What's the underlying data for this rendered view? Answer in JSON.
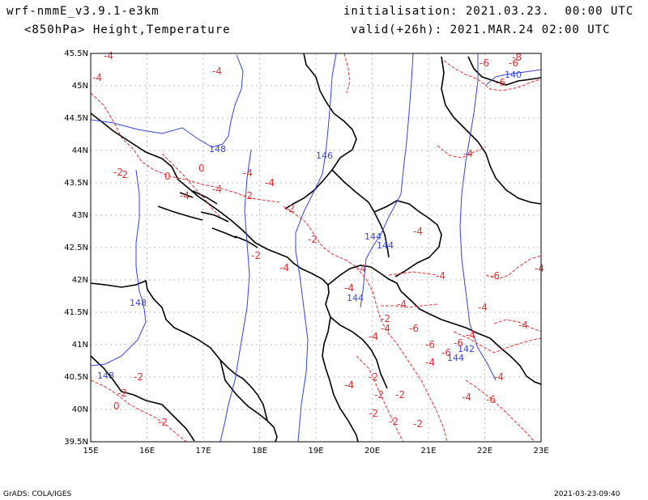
{
  "header": {
    "model": "wrf-nmmE_v3.9.1-e3km",
    "fields": "<850hPa> Height,Temperature",
    "init": "initialisation: 2021.03.23.  00:00 UTC",
    "valid": "valid(+26h): 2021.MAR.24 02:00 UTC"
  },
  "map": {
    "lat_labels": [
      "45.5N",
      "45N",
      "44.5N",
      "44N",
      "43.5N",
      "43N",
      "42.5N",
      "42N",
      "41.5N",
      "41N",
      "40.5N",
      "40N",
      "39.5N"
    ],
    "lon_labels": [
      "15E",
      "16E",
      "17E",
      "18E",
      "19E",
      "20E",
      "21E",
      "22E",
      "23E"
    ],
    "height_color": "#3344dd",
    "temperature_color": "#e83030",
    "height_labels": [
      "140",
      "148",
      "146",
      "144",
      "144",
      "148",
      "144",
      "148",
      "144",
      "142"
    ],
    "temperature_labels": [
      "-4",
      "-4",
      "-4",
      "-6",
      "-6",
      "-6",
      "-8",
      "-4",
      "-2",
      "-4",
      "-4",
      "-2",
      "-4",
      "-2",
      "-4",
      "-2",
      "-4",
      "-4",
      "-2",
      "-4",
      "-6",
      "-4",
      "-6",
      "-6",
      "-4",
      "-4",
      "-4",
      "-6",
      "-4",
      "-4",
      "-4",
      "-4",
      "-2",
      "-2",
      "-2",
      "-2",
      "-2",
      "-2",
      "-4",
      "-2",
      "-6",
      "-4",
      "-2",
      "-4",
      "-6",
      "-4",
      "0",
      "0",
      "0",
      "-2",
      "-4",
      "-2",
      "-2"
    ]
  },
  "footer": {
    "left": "GrADS: COLA/IGES",
    "right": "2021-03-23-09:40"
  }
}
